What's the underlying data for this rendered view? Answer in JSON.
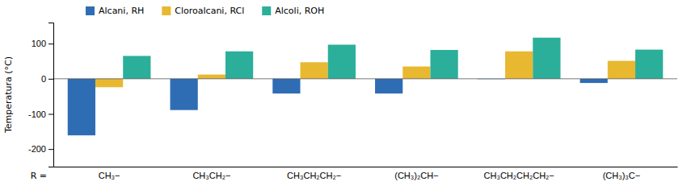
{
  "chart_data": {
    "type": "bar",
    "categories": [
      "CH₃−",
      "CH₃CH₂−",
      "CH₃CH₂CH₂−",
      "(CH₃)₂CH−",
      "CH₃CH₂CH₂CH₂−",
      "(CH₃)₃C−"
    ],
    "series": [
      {
        "name": "Alcani, RH",
        "color": "#2E6DB4",
        "values": [
          -161,
          -89,
          -42,
          -42,
          -1,
          -12
        ]
      },
      {
        "name": "Cloroalcani, RCl",
        "color": "#E8B830",
        "values": [
          -24,
          12,
          47,
          35,
          78,
          51
        ]
      },
      {
        "name": "Alcoli, ROH",
        "color": "#2BAF9A",
        "values": [
          65,
          78,
          97,
          82,
          117,
          83
        ]
      }
    ],
    "ylabel": "Temperatura (°C)",
    "annotations": [
      "R ="
    ],
    "ylim": [
      -250,
      160
    ],
    "yticks": [
      -200,
      -100,
      0,
      100
    ],
    "grid": false,
    "legend": "top-left"
  }
}
